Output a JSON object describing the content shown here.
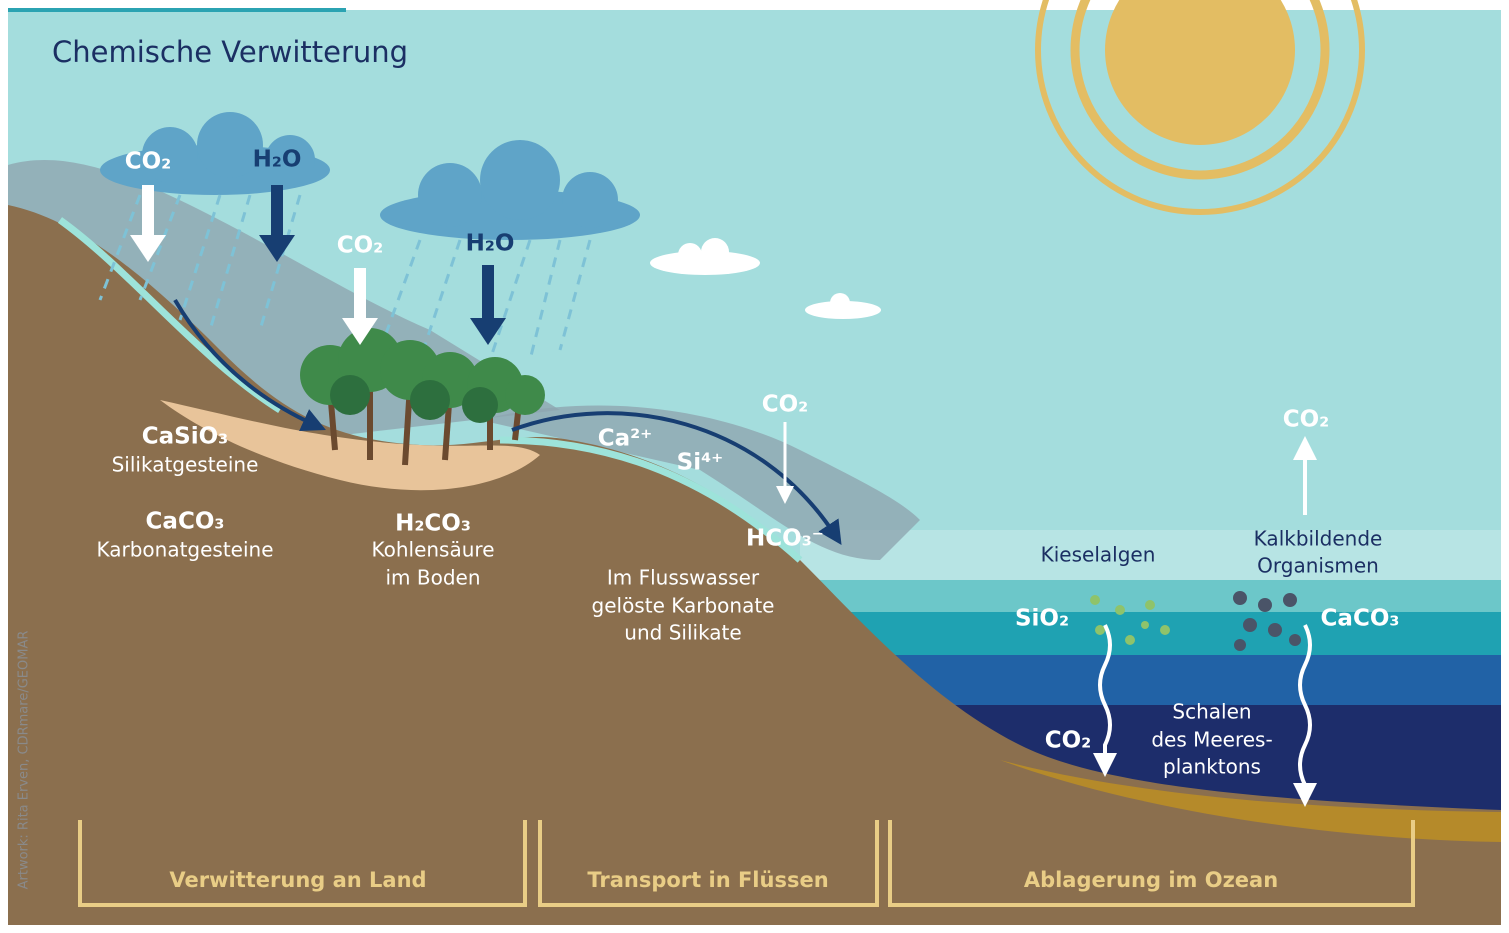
{
  "title": "Chemische Verwitterung",
  "credit": "Artwork: Rita Erven, CDRmare/GEOMAR",
  "labels": [
    {
      "lines": [
        "CO₂"
      ]
    },
    {
      "lines": [
        "H₂O"
      ]
    },
    {
      "lines": [
        "CO₂"
      ]
    },
    {
      "lines": [
        "H₂O"
      ]
    },
    {
      "lines": [
        "CaSiO₃"
      ]
    },
    {
      "lines": [
        "Silikatgesteine"
      ]
    },
    {
      "lines": [
        "CaCO₃"
      ]
    },
    {
      "lines": [
        "Karbonatgesteine"
      ]
    },
    {
      "lines": [
        "H₂CO₃"
      ]
    },
    {
      "lines": [
        "Kohlensäure",
        "im Boden"
      ]
    },
    {
      "lines": [
        "Ca²⁺"
      ]
    },
    {
      "lines": [
        "Si⁴⁺"
      ]
    },
    {
      "lines": [
        "CO₂"
      ]
    },
    {
      "lines": [
        "HCO₃⁻"
      ]
    },
    {
      "lines": [
        "Im Flusswasser",
        "gelöste Karbonate",
        "und Silikate"
      ]
    },
    {
      "lines": [
        "CO₂"
      ]
    },
    {
      "lines": [
        "Kieselalgen"
      ]
    },
    {
      "lines": [
        "Kalkbildende",
        "Organismen"
      ]
    },
    {
      "lines": [
        "SiO₂"
      ]
    },
    {
      "lines": [
        "CaCO₃"
      ]
    },
    {
      "lines": [
        "CO₂"
      ]
    },
    {
      "lines": [
        "Schalen",
        "des Meeres-",
        "planktons"
      ]
    }
  ],
  "sections": [
    "Verwitterung an Land",
    "Transport in Flüssen",
    "Ablagerung im Ozean"
  ]
}
